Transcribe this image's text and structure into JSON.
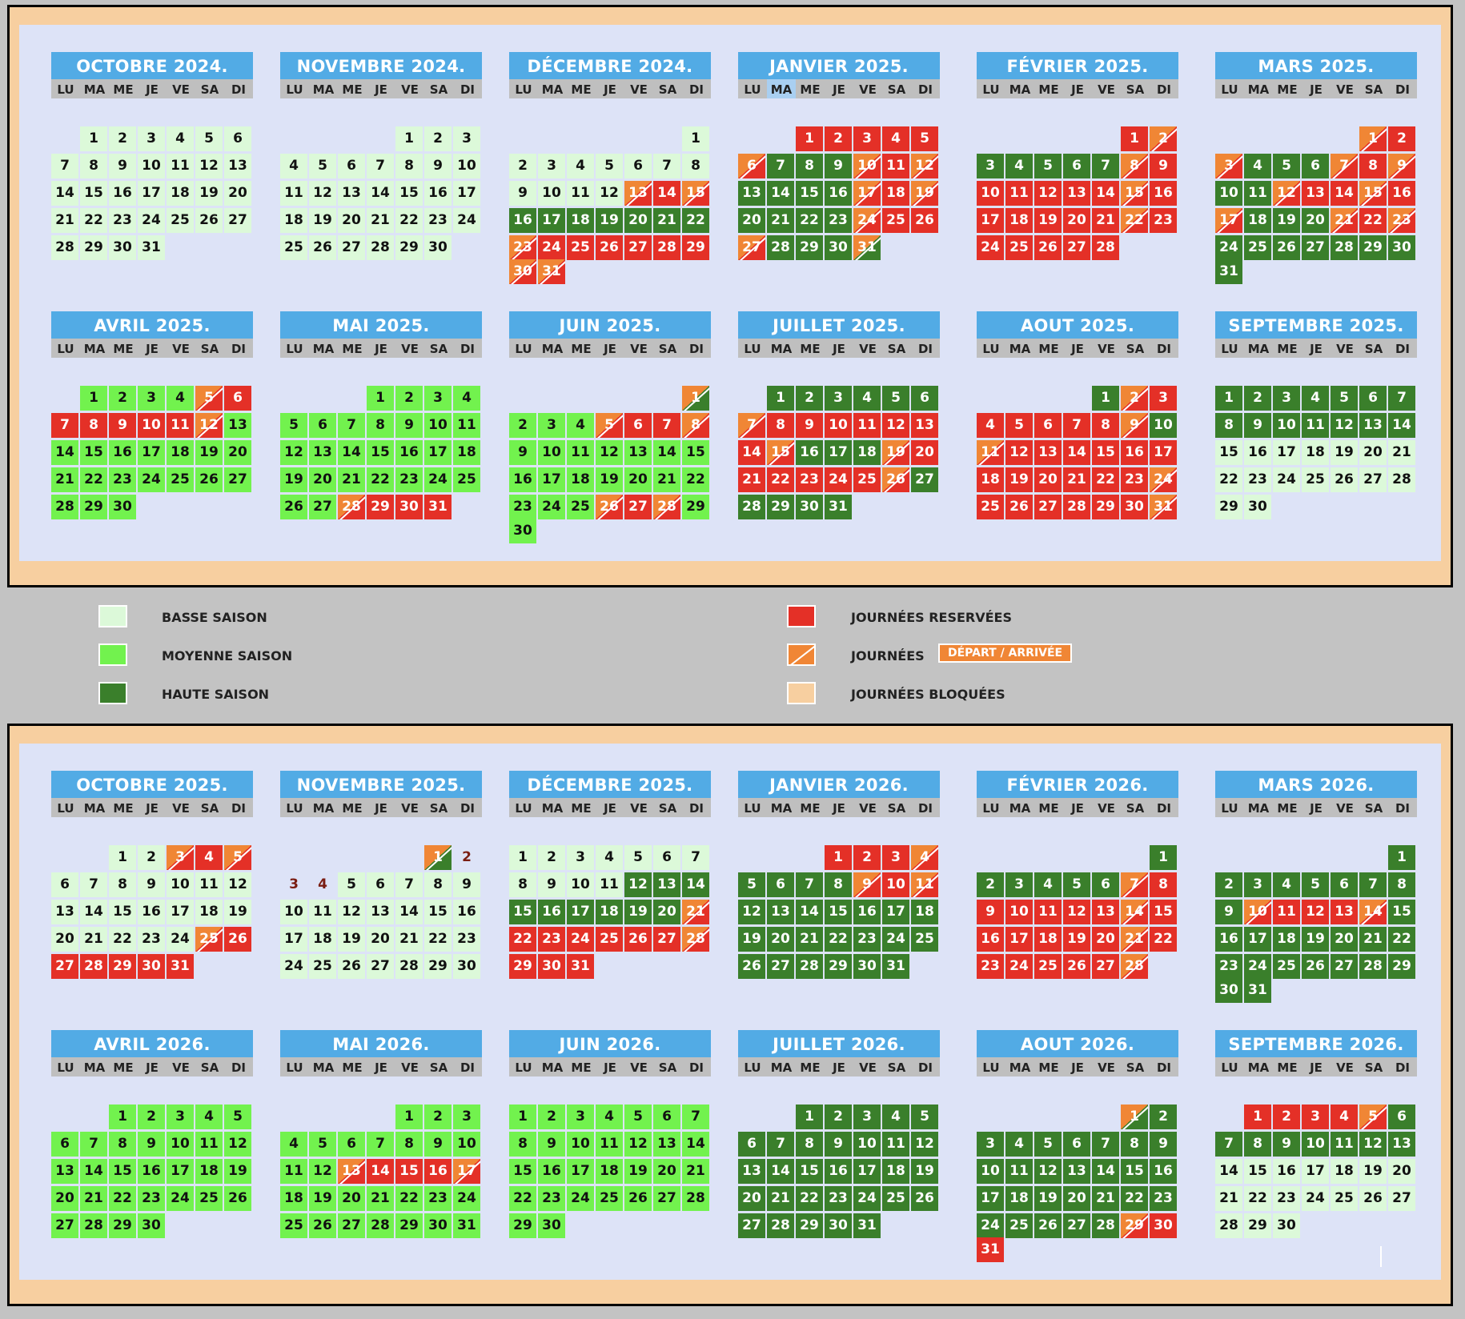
{
  "colors": {
    "basse": "#dcf9d9",
    "moyenne": "#72f24e",
    "haute": "#3a7f2b",
    "reserve": "#e43027",
    "transition": "#f08635",
    "bloque": "#f7cfa0",
    "header": "#52abe5"
  },
  "weekdays": [
    "LU",
    "MA",
    "ME",
    "JE",
    "VE",
    "SA",
    "DI"
  ],
  "legend": {
    "basse": "BASSE SAISON",
    "moyenne": "MOYENNE SAISON",
    "haute": "HAUTE SAISON",
    "reservees": "JOURNÉES RESERVÉES",
    "journees": "JOURNÉES",
    "depart_arrivee": "DÉPART / ARRIVÉE",
    "bloquees": "JOURNÉES BLOQUÉES"
  },
  "panels": [
    {
      "months": [
        {
          "title": "OCTOBRE 2024.",
          "start": 1,
          "days": 31,
          "s": "31*b"
        },
        {
          "title": "NOVEMBRE 2024.",
          "start": 4,
          "days": 30,
          "s": "30*b"
        },
        {
          "title": "DÉCEMBRE 2024.",
          "start": 6,
          "days": 31,
          "s": "12*b,t,r,t,7*h,t,r,r,r,r,r,r,t,t,r,r"
        },
        {
          "title": "JANVIER 2025.",
          "start": 2,
          "days": 31,
          "s": "r,r,r,r,r,t,h,h,h,t,r,t,h,h,h,h,t,r,t,h,h,h,h,t,r,r,t,h,h,h,t"
        },
        {
          "title": "FÉVRIER 2025.",
          "start": 5,
          "days": 28,
          "s": "r,t,h,h,h,h,h,t,r,r,r,r,r,r,t,r,r,r,r,r,r,t,r,r,r,r,r,r"
        },
        {
          "title": "MARS 2025.",
          "start": 5,
          "days": 31,
          "s": "t,r,t,h,h,h,t,r,t,h,h,t,r,r,t,r,t,h,h,h,t,r,t,h,h,h,h,h,h,h,h"
        },
        {
          "title": "AVRIL 2025.",
          "start": 1,
          "days": 30,
          "s": "m,m,m,m,t,r,r,r,r,r,r,t,m,m,m,m,m,m,m,m,m,m,m,m,m,m,m,m,m,m"
        },
        {
          "title": "MAI 2025.",
          "start": 3,
          "days": 31,
          "s": "27*m,t,r,r,r"
        },
        {
          "title": "JUIN 2025.",
          "start": 6,
          "days": 30,
          "s": "t,m,m,m,t,r,r,t,m,m,m,m,m,m,m,m,m,m,m,m,m,m,m,m,m,t,r,t,m,m"
        },
        {
          "title": "JUILLET 2025.",
          "start": 1,
          "days": 31,
          "s": "h,h,h,h,h,h,t,r,r,r,r,r,r,r,t,h,h,h,t,r,r,r,r,r,r,t,h,h,h,h,h"
        },
        {
          "title": "AOUT 2025.",
          "start": 4,
          "days": 31,
          "s": "h,t,r,r,r,r,r,r,t,h,t,r,r,r,r,r,r,r,r,r,r,r,r,t,r,r,r,r,r,r,t"
        },
        {
          "title": "SEPTEMBRE 2025.",
          "start": 0,
          "days": 30,
          "s": "14*h,16*b"
        }
      ]
    },
    {
      "months": [
        {
          "title": "OCTOBRE 2025.",
          "start": 2,
          "days": 31,
          "s": "b,b,t,r,t,b,b,b,b,b,b,b,b,b,b,b,b,b,b,b,b,b,b,b,t,r,r,r,r,r,r"
        },
        {
          "title": "NOVEMBRE 2025.",
          "start": 5,
          "days": 30,
          "s": "t,n,n,n,b,b,b,b,b,b,b,b,b,b,b,b,b,b,b,b,b,b,b,b,b,b,b,b,b,b"
        },
        {
          "title": "DÉCEMBRE 2025.",
          "start": 0,
          "days": 31,
          "s": "11*b,h,h,h,h,h,h,h,h,h,t,r,r,r,r,r,r,t,r,r,r"
        },
        {
          "title": "JANVIER 2026.",
          "start": 3,
          "days": 31,
          "s": "r,r,r,t,h,h,h,h,t,r,t,h,h,h,h,h,h,h,h,h,h,h,h,h,h,h,h,h,h,h,h"
        },
        {
          "title": "FÉVRIER 2026.",
          "start": 6,
          "days": 28,
          "s": "h,h,h,h,h,h,t,r,r,r,r,r,r,t,r,r,r,r,r,r,t,r,r,r,r,r,r,t"
        },
        {
          "title": "MARS 2026.",
          "start": 6,
          "days": 31,
          "s": "h,h,h,h,h,h,h,h,h,t,r,r,r,t,h,h,h,h,h,h,h,h,h,h,h,h,h,h,h,h,h"
        },
        {
          "title": "AVRIL 2026.",
          "start": 2,
          "days": 30,
          "s": "30*m"
        },
        {
          "title": "MAI 2026.",
          "start": 4,
          "days": 31,
          "s": "m,m,m,m,m,m,m,m,m,m,m,m,t,r,r,r,t,m,m,m,m,m,m,m,m,m,m,m,m,m,m"
        },
        {
          "title": "JUIN 2026.",
          "start": 0,
          "days": 30,
          "s": "30*m"
        },
        {
          "title": "JUILLET 2026.",
          "start": 2,
          "days": 31,
          "s": "31*h"
        },
        {
          "title": "AOUT 2026.",
          "start": 5,
          "days": 31,
          "s": "t,h,h,h,h,h,h,h,h,h,h,h,h,h,h,h,h,h,h,h,h,h,h,h,h,h,h,h,t,r,r"
        },
        {
          "title": "SEPTEMBRE 2026.",
          "start": 1,
          "days": 30,
          "s": "r,r,r,r,t,h,h,h,h,h,h,h,h,b,b,b,b,b,b,b,b,b,b,b,b,b,b,b,b,b"
        }
      ]
    }
  ]
}
